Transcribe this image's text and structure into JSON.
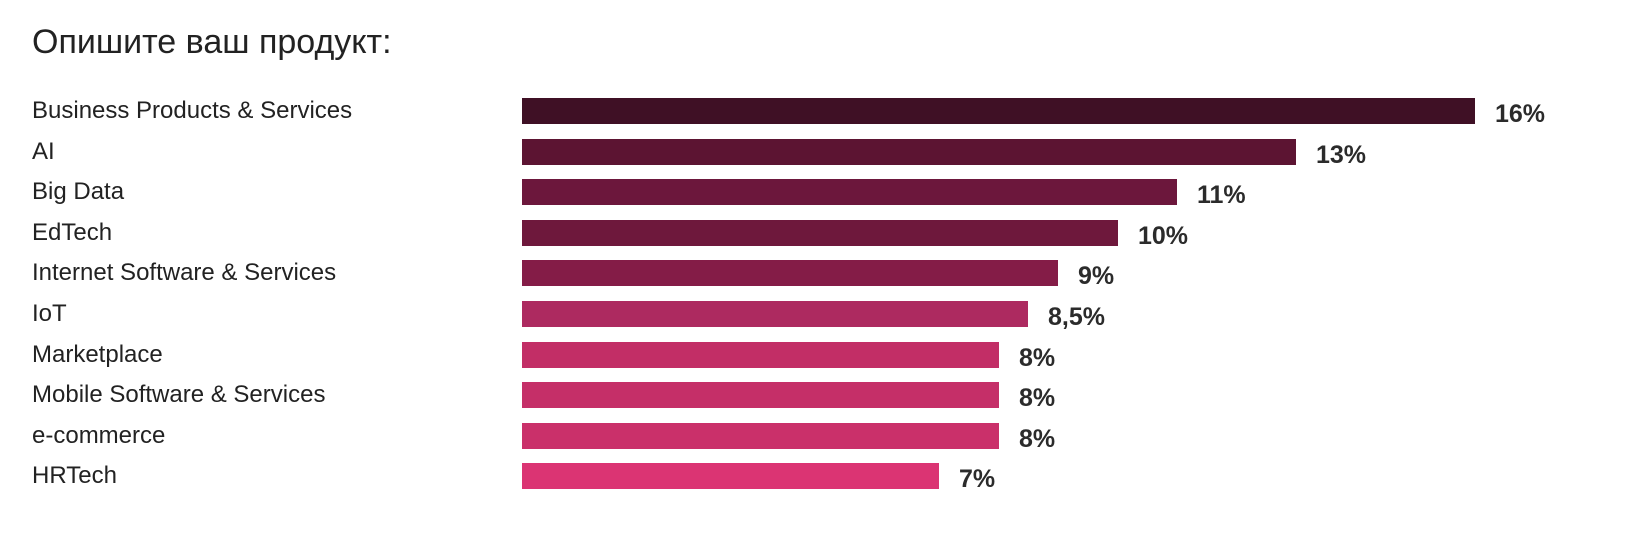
{
  "chart_data": {
    "type": "bar",
    "orientation": "horizontal",
    "title": "Опишите ваш продукт:",
    "xlabel": "",
    "ylabel": "",
    "xlim": [
      0,
      16
    ],
    "grid": false,
    "legend": "none",
    "categories": [
      "Business Products & Services",
      "AI",
      "Big Data",
      "EdTech",
      "Internet Software & Services",
      "IoT",
      "Marketplace",
      "Mobile Software & Services",
      "e-commerce",
      "HRTech"
    ],
    "values": [
      16,
      13,
      11,
      10,
      9,
      8.5,
      8,
      8,
      8,
      7
    ],
    "value_labels": [
      "16%",
      "13%",
      "11%",
      "10%",
      "9%",
      "8,5%",
      "8%",
      "8%",
      "8%",
      "7%"
    ],
    "colors": [
      "#3f1025",
      "#5c1432",
      "#6c173c",
      "#6e183c",
      "#841c47",
      "#ad2a60",
      "#c22e66",
      "#c52f68",
      "#ca306a",
      "#db3473"
    ]
  }
}
